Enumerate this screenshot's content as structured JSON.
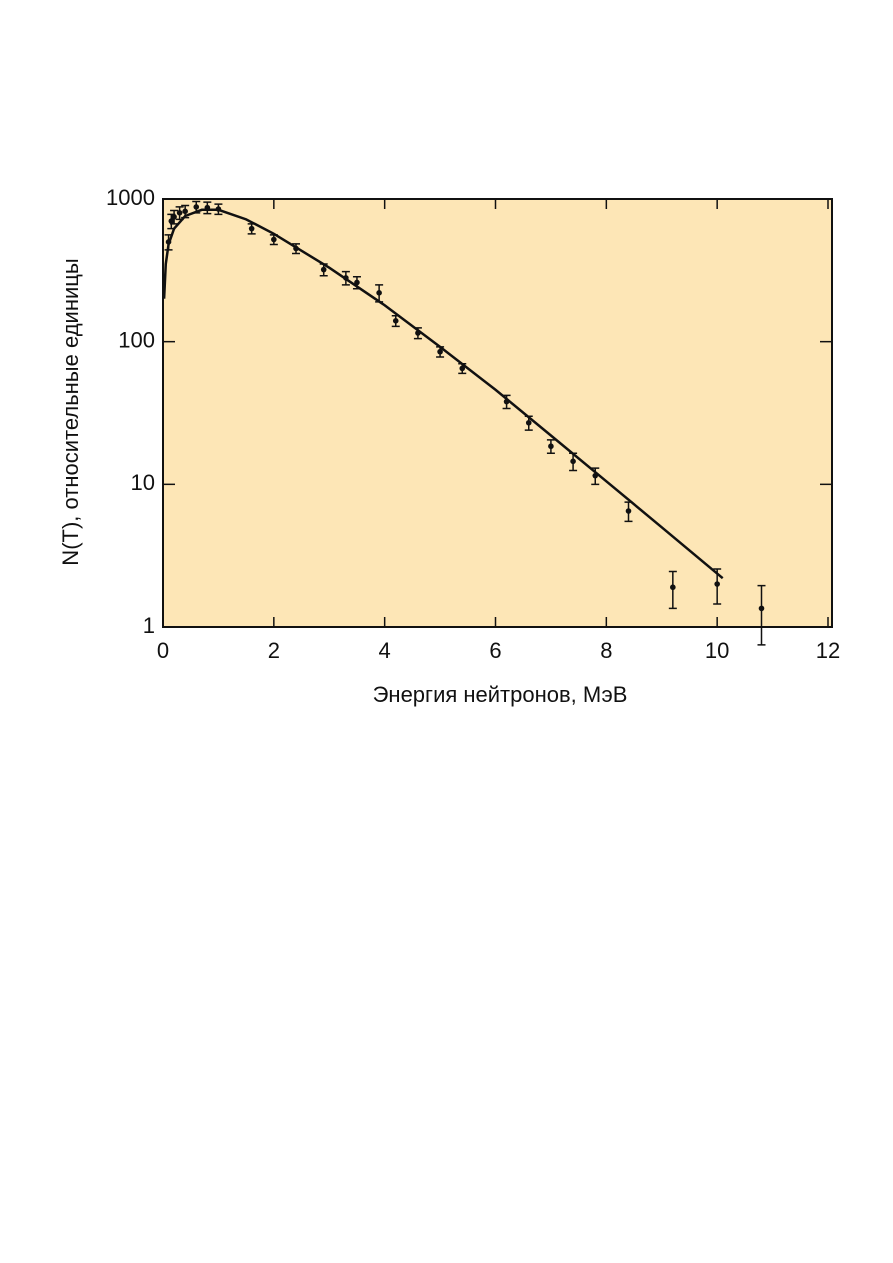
{
  "chart_data": {
    "type": "scatter",
    "x_label": "Энергия нейтронов, МэВ",
    "y_label": "N(T), относительные единицы",
    "log_y": true,
    "background": "#fde6b6",
    "color": "#111111",
    "xlim": [
      0,
      12
    ],
    "xticks": [
      0,
      2,
      4,
      6,
      8,
      10,
      12
    ],
    "ylim": [
      1,
      1000
    ],
    "yticks": [
      1,
      10,
      100,
      1000
    ],
    "points": {
      "x": [
        0.1,
        0.15,
        0.2,
        0.3,
        0.4,
        0.6,
        0.8,
        1.0,
        1.6,
        2.0,
        2.4,
        2.9,
        3.3,
        3.5,
        3.9,
        4.2,
        4.6,
        5.0,
        5.4,
        6.2,
        6.6,
        7.0,
        7.4,
        7.8,
        8.4,
        9.2,
        10.0,
        10.8
      ],
      "values": [
        500,
        700,
        750,
        800,
        820,
        880,
        870,
        850,
        620,
        520,
        450,
        320,
        280,
        260,
        220,
        140,
        115,
        85,
        65,
        38,
        27,
        18.5,
        14.5,
        11.5,
        6.5,
        1.9,
        2.0,
        1.35
      ],
      "errors": [
        60,
        80,
        80,
        80,
        80,
        80,
        80,
        70,
        50,
        40,
        35,
        30,
        30,
        25,
        30,
        12,
        10,
        7,
        5,
        4,
        3,
        2,
        2,
        1.5,
        1,
        0.55,
        0.55,
        0.6
      ]
    },
    "fit": {
      "x": [
        0.02,
        0.05,
        0.1,
        0.2,
        0.4,
        0.7,
        1.0,
        1.5,
        2,
        3,
        4,
        5,
        6,
        7,
        8,
        9,
        10.1
      ],
      "values": [
        200,
        350,
        480,
        620,
        760,
        840,
        840,
        720,
        570,
        330,
        180,
        92,
        46,
        22,
        10.5,
        5,
        2.2
      ]
    }
  }
}
